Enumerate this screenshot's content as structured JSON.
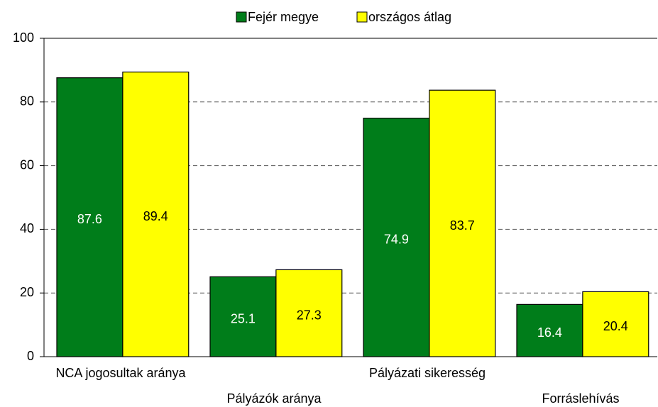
{
  "chart_data": {
    "type": "bar",
    "categories": [
      "NCA jogosultak aránya",
      "Pályázók aránya",
      "Pályázati sikeresség",
      "Forráslehívás"
    ],
    "series": [
      {
        "name": "Fejér megye",
        "color": "#007d1a",
        "values": [
          87.6,
          25.1,
          74.9,
          16.4
        ]
      },
      {
        "name": "országos átlag",
        "color": "#ffff00",
        "values": [
          89.4,
          27.3,
          83.7,
          20.4
        ]
      }
    ],
    "ylim": [
      0,
      100
    ],
    "yticks": [
      0,
      20,
      40,
      60,
      80,
      100
    ],
    "grid": true,
    "legend": "top"
  }
}
